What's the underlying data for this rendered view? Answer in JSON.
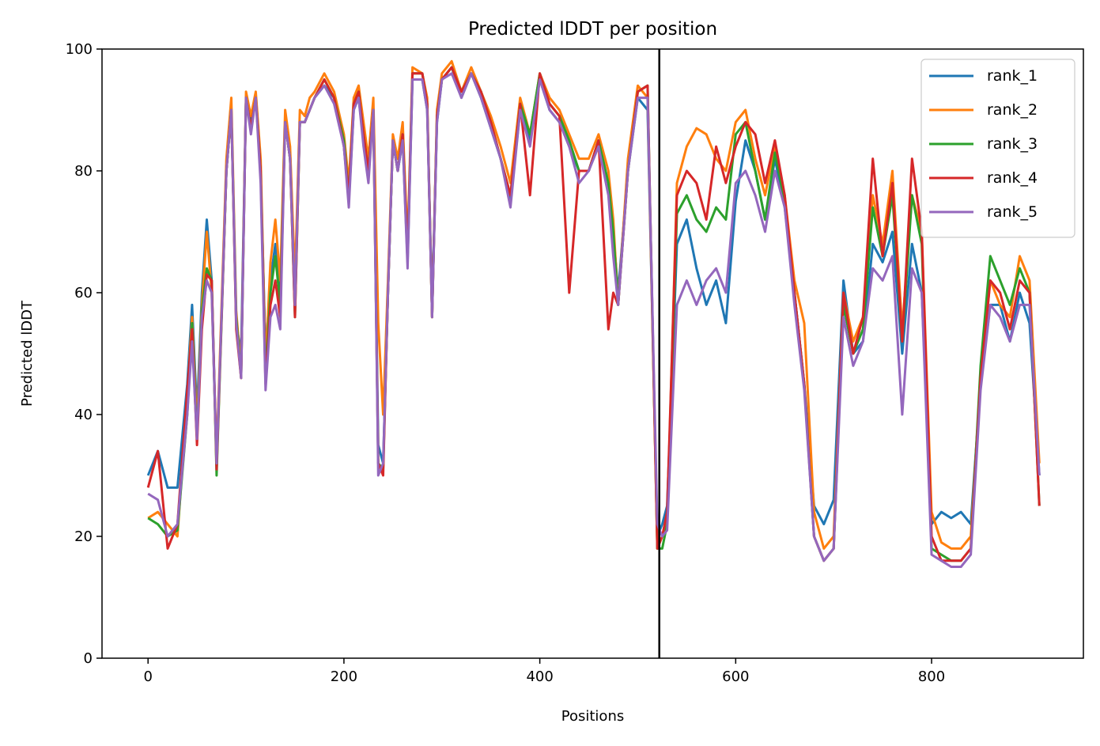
{
  "chart_data": {
    "type": "line",
    "title": "Predicted lDDT per position",
    "xlabel": "Positions",
    "ylabel": "Predicted lDDT",
    "xlim": [
      -47,
      955
    ],
    "ylim": [
      0,
      100
    ],
    "xticks": [
      0,
      200,
      400,
      600,
      800
    ],
    "yticks": [
      0,
      20,
      40,
      60,
      80,
      100
    ],
    "xtick_labels": [
      "0",
      "200",
      "400",
      "600",
      "800"
    ],
    "ytick_labels": [
      "0",
      "20",
      "40",
      "60",
      "80",
      "100"
    ],
    "grid": false,
    "legend_position": "upper right",
    "divider_x": 522,
    "x": [
      0,
      10,
      20,
      30,
      40,
      45,
      50,
      55,
      60,
      65,
      70,
      80,
      85,
      90,
      95,
      100,
      105,
      110,
      115,
      120,
      125,
      130,
      135,
      140,
      145,
      150,
      155,
      160,
      165,
      170,
      180,
      190,
      200,
      205,
      210,
      215,
      220,
      225,
      230,
      235,
      240,
      245,
      250,
      255,
      260,
      265,
      270,
      280,
      285,
      290,
      295,
      300,
      310,
      320,
      330,
      340,
      350,
      360,
      370,
      380,
      390,
      400,
      410,
      420,
      430,
      440,
      450,
      460,
      470,
      475,
      480,
      490,
      500,
      510,
      520,
      525,
      530,
      540,
      550,
      560,
      570,
      580,
      590,
      600,
      610,
      620,
      630,
      640,
      650,
      660,
      670,
      680,
      690,
      700,
      710,
      720,
      730,
      740,
      750,
      760,
      770,
      780,
      790,
      800,
      810,
      820,
      830,
      840,
      850,
      860,
      870,
      880,
      890,
      900,
      910
    ],
    "series": [
      {
        "name": "rank_1",
        "color": "#1f77b4",
        "values": [
          30,
          34,
          28,
          28,
          45,
          58,
          40,
          60,
          72,
          62,
          32,
          80,
          90,
          55,
          50,
          92,
          88,
          92,
          80,
          50,
          62,
          68,
          60,
          88,
          82,
          60,
          88,
          88,
          90,
          92,
          94,
          92,
          84,
          75,
          90,
          92,
          85,
          80,
          90,
          35,
          32,
          60,
          85,
          80,
          85,
          65,
          95,
          95,
          90,
          58,
          88,
          95,
          97,
          92,
          96,
          92,
          87,
          82,
          75,
          90,
          85,
          95,
          90,
          88,
          84,
          80,
          80,
          85,
          78,
          70,
          60,
          80,
          92,
          90,
          20,
          22,
          25,
          68,
          72,
          64,
          58,
          62,
          55,
          75,
          85,
          80,
          72,
          82,
          74,
          60,
          45,
          25,
          22,
          26,
          62,
          50,
          52,
          68,
          65,
          70,
          50,
          68,
          60,
          22,
          24,
          23,
          24,
          22,
          45,
          58,
          58,
          52,
          60,
          55,
          30
        ]
      },
      {
        "name": "rank_2",
        "color": "#ff7f0e",
        "values": [
          23,
          24,
          22,
          20,
          43,
          56,
          38,
          58,
          70,
          60,
          33,
          82,
          92,
          57,
          47,
          93,
          89,
          93,
          82,
          48,
          65,
          72,
          62,
          90,
          84,
          62,
          90,
          89,
          92,
          93,
          96,
          93,
          86,
          78,
          92,
          94,
          88,
          82,
          92,
          55,
          40,
          62,
          86,
          82,
          88,
          68,
          97,
          96,
          92,
          56,
          90,
          96,
          98,
          93,
          97,
          93,
          89,
          84,
          78,
          92,
          86,
          96,
          92,
          90,
          86,
          82,
          82,
          86,
          80,
          72,
          58,
          82,
          94,
          92,
          18,
          20,
          22,
          78,
          84,
          87,
          86,
          82,
          80,
          88,
          90,
          82,
          76,
          84,
          76,
          62,
          55,
          24,
          18,
          20,
          60,
          52,
          56,
          76,
          68,
          80,
          54,
          76,
          70,
          24,
          19,
          18,
          18,
          20,
          46,
          62,
          58,
          56,
          66,
          62,
          32
        ]
      },
      {
        "name": "rank_3",
        "color": "#2ca02c",
        "values": [
          23,
          22,
          20,
          21,
          40,
          55,
          36,
          57,
          64,
          62,
          30,
          80,
          90,
          56,
          46,
          92,
          87,
          92,
          80,
          46,
          60,
          66,
          58,
          88,
          82,
          56,
          88,
          88,
          90,
          92,
          95,
          92,
          85,
          76,
          91,
          93,
          86,
          80,
          90,
          32,
          31,
          60,
          85,
          80,
          86,
          66,
          96,
          96,
          91,
          56,
          89,
          95,
          97,
          93,
          96,
          93,
          88,
          82,
          76,
          91,
          86,
          96,
          91,
          89,
          85,
          80,
          80,
          85,
          78,
          70,
          58,
          80,
          93,
          94,
          18,
          18,
          22,
          73,
          76,
          72,
          70,
          74,
          72,
          86,
          88,
          80,
          72,
          83,
          75,
          60,
          45,
          20,
          16,
          18,
          58,
          50,
          54,
          74,
          66,
          76,
          52,
          76,
          68,
          18,
          17,
          16,
          16,
          18,
          48,
          66,
          62,
          58,
          64,
          60,
          25
        ]
      },
      {
        "name": "rank_4",
        "color": "#d62728",
        "values": [
          28,
          34,
          18,
          22,
          44,
          54,
          35,
          54,
          63,
          62,
          31,
          80,
          90,
          54,
          46,
          92,
          87,
          92,
          80,
          45,
          58,
          62,
          56,
          88,
          82,
          56,
          88,
          88,
          90,
          92,
          95,
          92,
          84,
          76,
          91,
          93,
          86,
          80,
          90,
          32,
          30,
          60,
          85,
          80,
          86,
          66,
          96,
          96,
          91,
          56,
          89,
          95,
          97,
          93,
          96,
          93,
          88,
          82,
          76,
          91,
          76,
          96,
          91,
          89,
          60,
          80,
          80,
          85,
          54,
          60,
          58,
          80,
          93,
          94,
          18,
          20,
          24,
          76,
          80,
          78,
          72,
          84,
          78,
          84,
          88,
          86,
          78,
          85,
          76,
          60,
          45,
          20,
          16,
          18,
          60,
          50,
          56,
          82,
          66,
          78,
          52,
          82,
          70,
          20,
          16,
          16,
          16,
          18,
          46,
          62,
          60,
          54,
          62,
          60,
          25
        ]
      },
      {
        "name": "rank_5",
        "color": "#9467bd",
        "values": [
          27,
          26,
          20,
          22,
          40,
          52,
          36,
          56,
          62,
          60,
          32,
          80,
          90,
          55,
          46,
          92,
          86,
          92,
          78,
          44,
          56,
          58,
          54,
          88,
          82,
          58,
          88,
          88,
          90,
          92,
          94,
          91,
          84,
          74,
          90,
          92,
          84,
          78,
          90,
          30,
          32,
          60,
          85,
          80,
          85,
          64,
          95,
          95,
          90,
          56,
          88,
          95,
          96,
          92,
          96,
          92,
          87,
          82,
          74,
          90,
          84,
          95,
          90,
          88,
          84,
          78,
          80,
          84,
          76,
          66,
          58,
          80,
          92,
          92,
          22,
          20,
          21,
          58,
          62,
          58,
          62,
          64,
          60,
          78,
          80,
          76,
          70,
          80,
          74,
          58,
          44,
          20,
          16,
          18,
          56,
          48,
          52,
          64,
          62,
          66,
          40,
          64,
          60,
          17,
          16,
          15,
          15,
          17,
          44,
          58,
          56,
          52,
          58,
          58,
          30
        ]
      }
    ]
  }
}
